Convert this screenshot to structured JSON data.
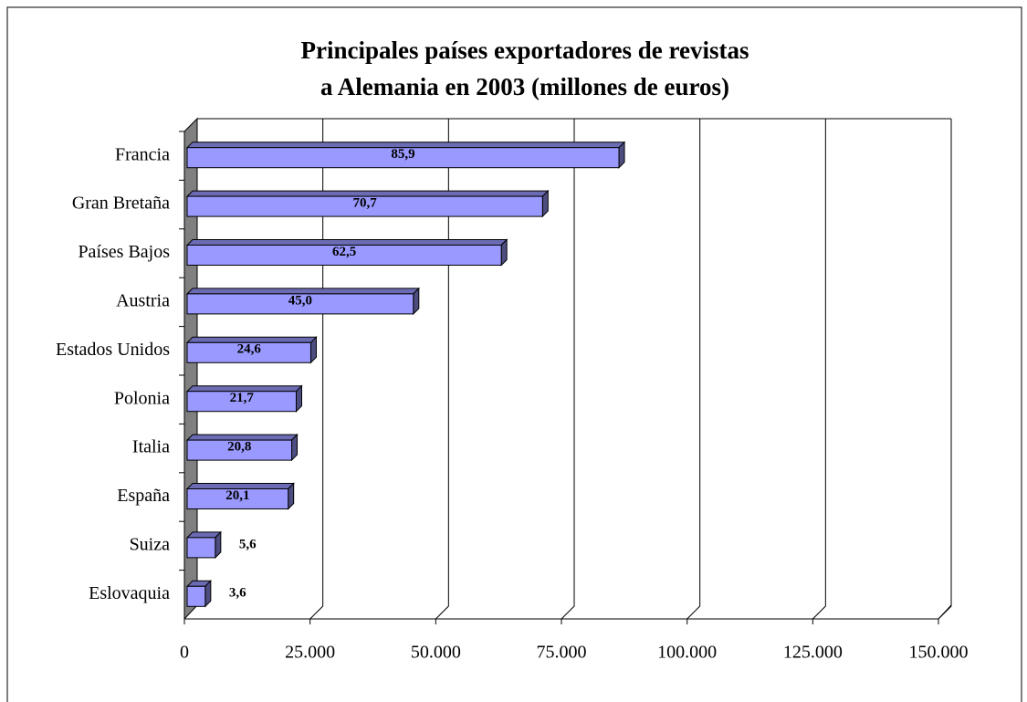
{
  "chart_data": {
    "type": "bar3d",
    "title": [
      "Principales países exportadores de revistas",
      "a Alemania en 2003 (millones de euros)"
    ],
    "categories": [
      "Francia",
      "Gran Bretaña",
      "Países Bajos",
      "Austria",
      "Estados Unidos",
      "Polonia",
      "Italia",
      "España",
      "Suiza",
      "Eslovaquia"
    ],
    "values": [
      85900,
      70700,
      62500,
      45000,
      24600,
      21700,
      20800,
      20100,
      5600,
      3600
    ],
    "value_labels": [
      "85,9",
      "70,7",
      "62,5",
      "45,0",
      "24,6",
      "21,7",
      "20,8",
      "20,1",
      "5,6",
      "3,6"
    ],
    "color": "#9999ff",
    "xlim": [
      0,
      150000
    ],
    "xticks": [
      0,
      {
        "value": 25000,
        "label": "25.000"
      },
      {
        "value": 50000,
        "label": "50.000"
      },
      {
        "value": 75000,
        "label": "75.000"
      },
      {
        "value": 100000,
        "label": "100.000"
      },
      {
        "value": 125000,
        "label": "125.000"
      },
      {
        "value": 150000,
        "label": "150.000"
      }
    ],
    "grid": true
  }
}
